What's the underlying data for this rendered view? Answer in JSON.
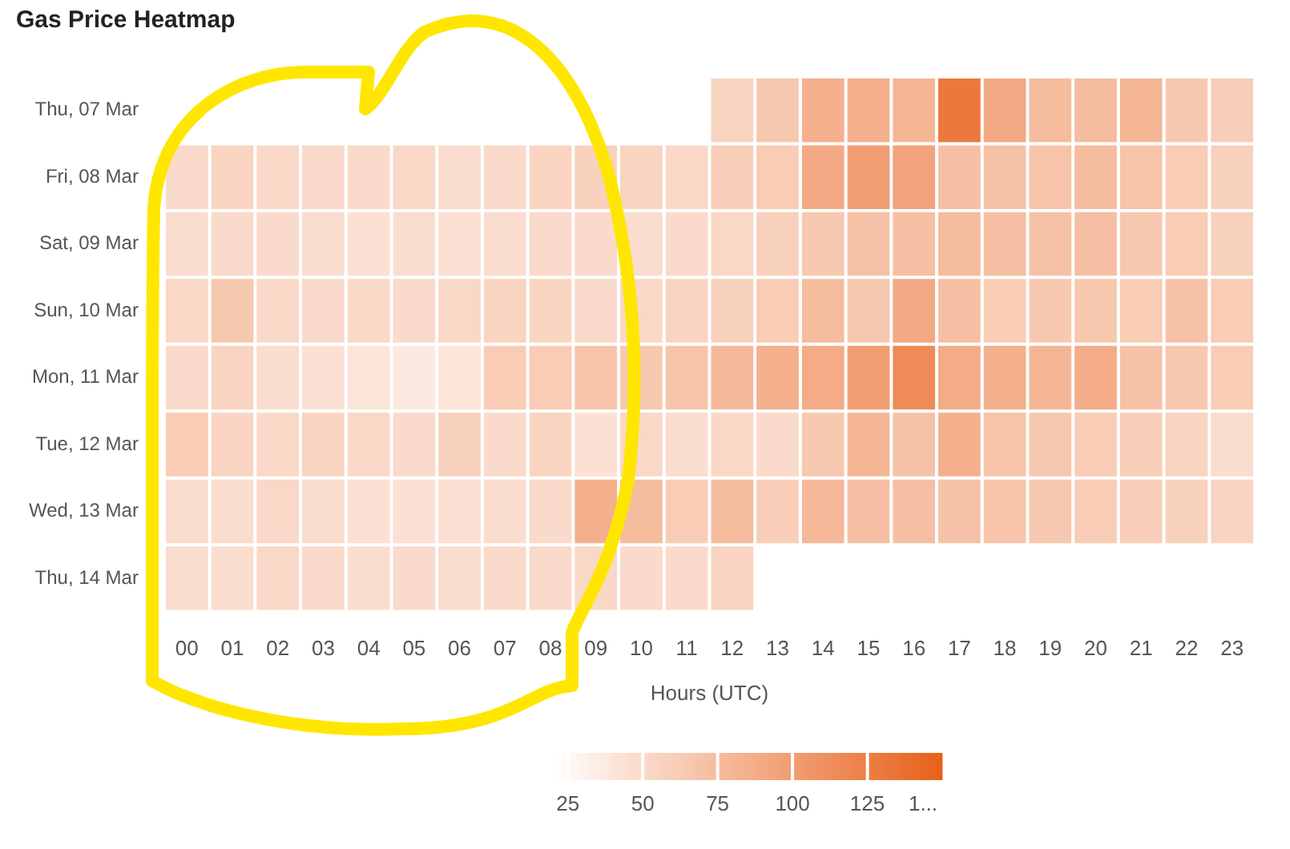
{
  "chart_data": {
    "type": "heatmap",
    "title": "Gas Price Heatmap",
    "xlabel": "Hours (UTC)",
    "categories": [
      "00",
      "01",
      "02",
      "03",
      "04",
      "05",
      "06",
      "07",
      "08",
      "09",
      "10",
      "11",
      "12",
      "13",
      "14",
      "15",
      "16",
      "17",
      "18",
      "19",
      "20",
      "21",
      "22",
      "23"
    ],
    "y_categories": [
      "Thu, 07 Mar",
      "Fri, 08 Mar",
      "Sat, 09 Mar",
      "Sun, 10 Mar",
      "Mon, 11 Mar",
      "Tue, 12 Mar",
      "Wed, 13 Mar",
      "Thu, 14 Mar"
    ],
    "cells": [
      [
        null,
        null,
        null,
        null,
        null,
        null,
        null,
        null,
        null,
        null,
        null,
        null,
        55,
        65,
        85,
        85,
        80,
        130,
        90,
        75,
        75,
        80,
        65,
        60
      ],
      [
        50,
        55,
        52,
        50,
        50,
        52,
        48,
        50,
        55,
        58,
        55,
        52,
        60,
        62,
        90,
        100,
        95,
        72,
        70,
        68,
        75,
        68,
        62,
        58
      ],
      [
        48,
        50,
        50,
        48,
        45,
        48,
        45,
        48,
        50,
        50,
        48,
        50,
        52,
        58,
        65,
        70,
        72,
        75,
        72,
        70,
        72,
        65,
        62,
        58
      ],
      [
        52,
        65,
        52,
        50,
        52,
        50,
        52,
        55,
        55,
        50,
        52,
        55,
        58,
        62,
        75,
        65,
        90,
        72,
        62,
        64,
        66,
        62,
        70,
        62
      ],
      [
        50,
        55,
        48,
        45,
        42,
        38,
        42,
        62,
        62,
        68,
        65,
        68,
        78,
        85,
        88,
        100,
        115,
        88,
        85,
        80,
        88,
        70,
        65,
        62
      ],
      [
        62,
        55,
        52,
        55,
        52,
        50,
        58,
        50,
        55,
        45,
        52,
        48,
        52,
        50,
        65,
        80,
        70,
        85,
        68,
        65,
        62,
        60,
        55,
        48
      ],
      [
        48,
        48,
        52,
        48,
        45,
        45,
        45,
        48,
        50,
        85,
        75,
        62,
        75,
        60,
        78,
        72,
        72,
        70,
        68,
        65,
        62,
        60,
        58,
        55
      ],
      [
        48,
        48,
        52,
        50,
        48,
        50,
        48,
        50,
        50,
        52,
        50,
        50,
        55,
        null,
        null,
        null,
        null,
        null,
        null,
        null,
        null,
        null,
        null,
        null
      ]
    ],
    "clim": [
      20,
      150
    ],
    "cticks": [
      25,
      50,
      75,
      100,
      125,
      {
        "value": 150,
        "label": "1..."
      }
    ],
    "colors": [
      "#ffffff",
      "#e8601a"
    ]
  }
}
